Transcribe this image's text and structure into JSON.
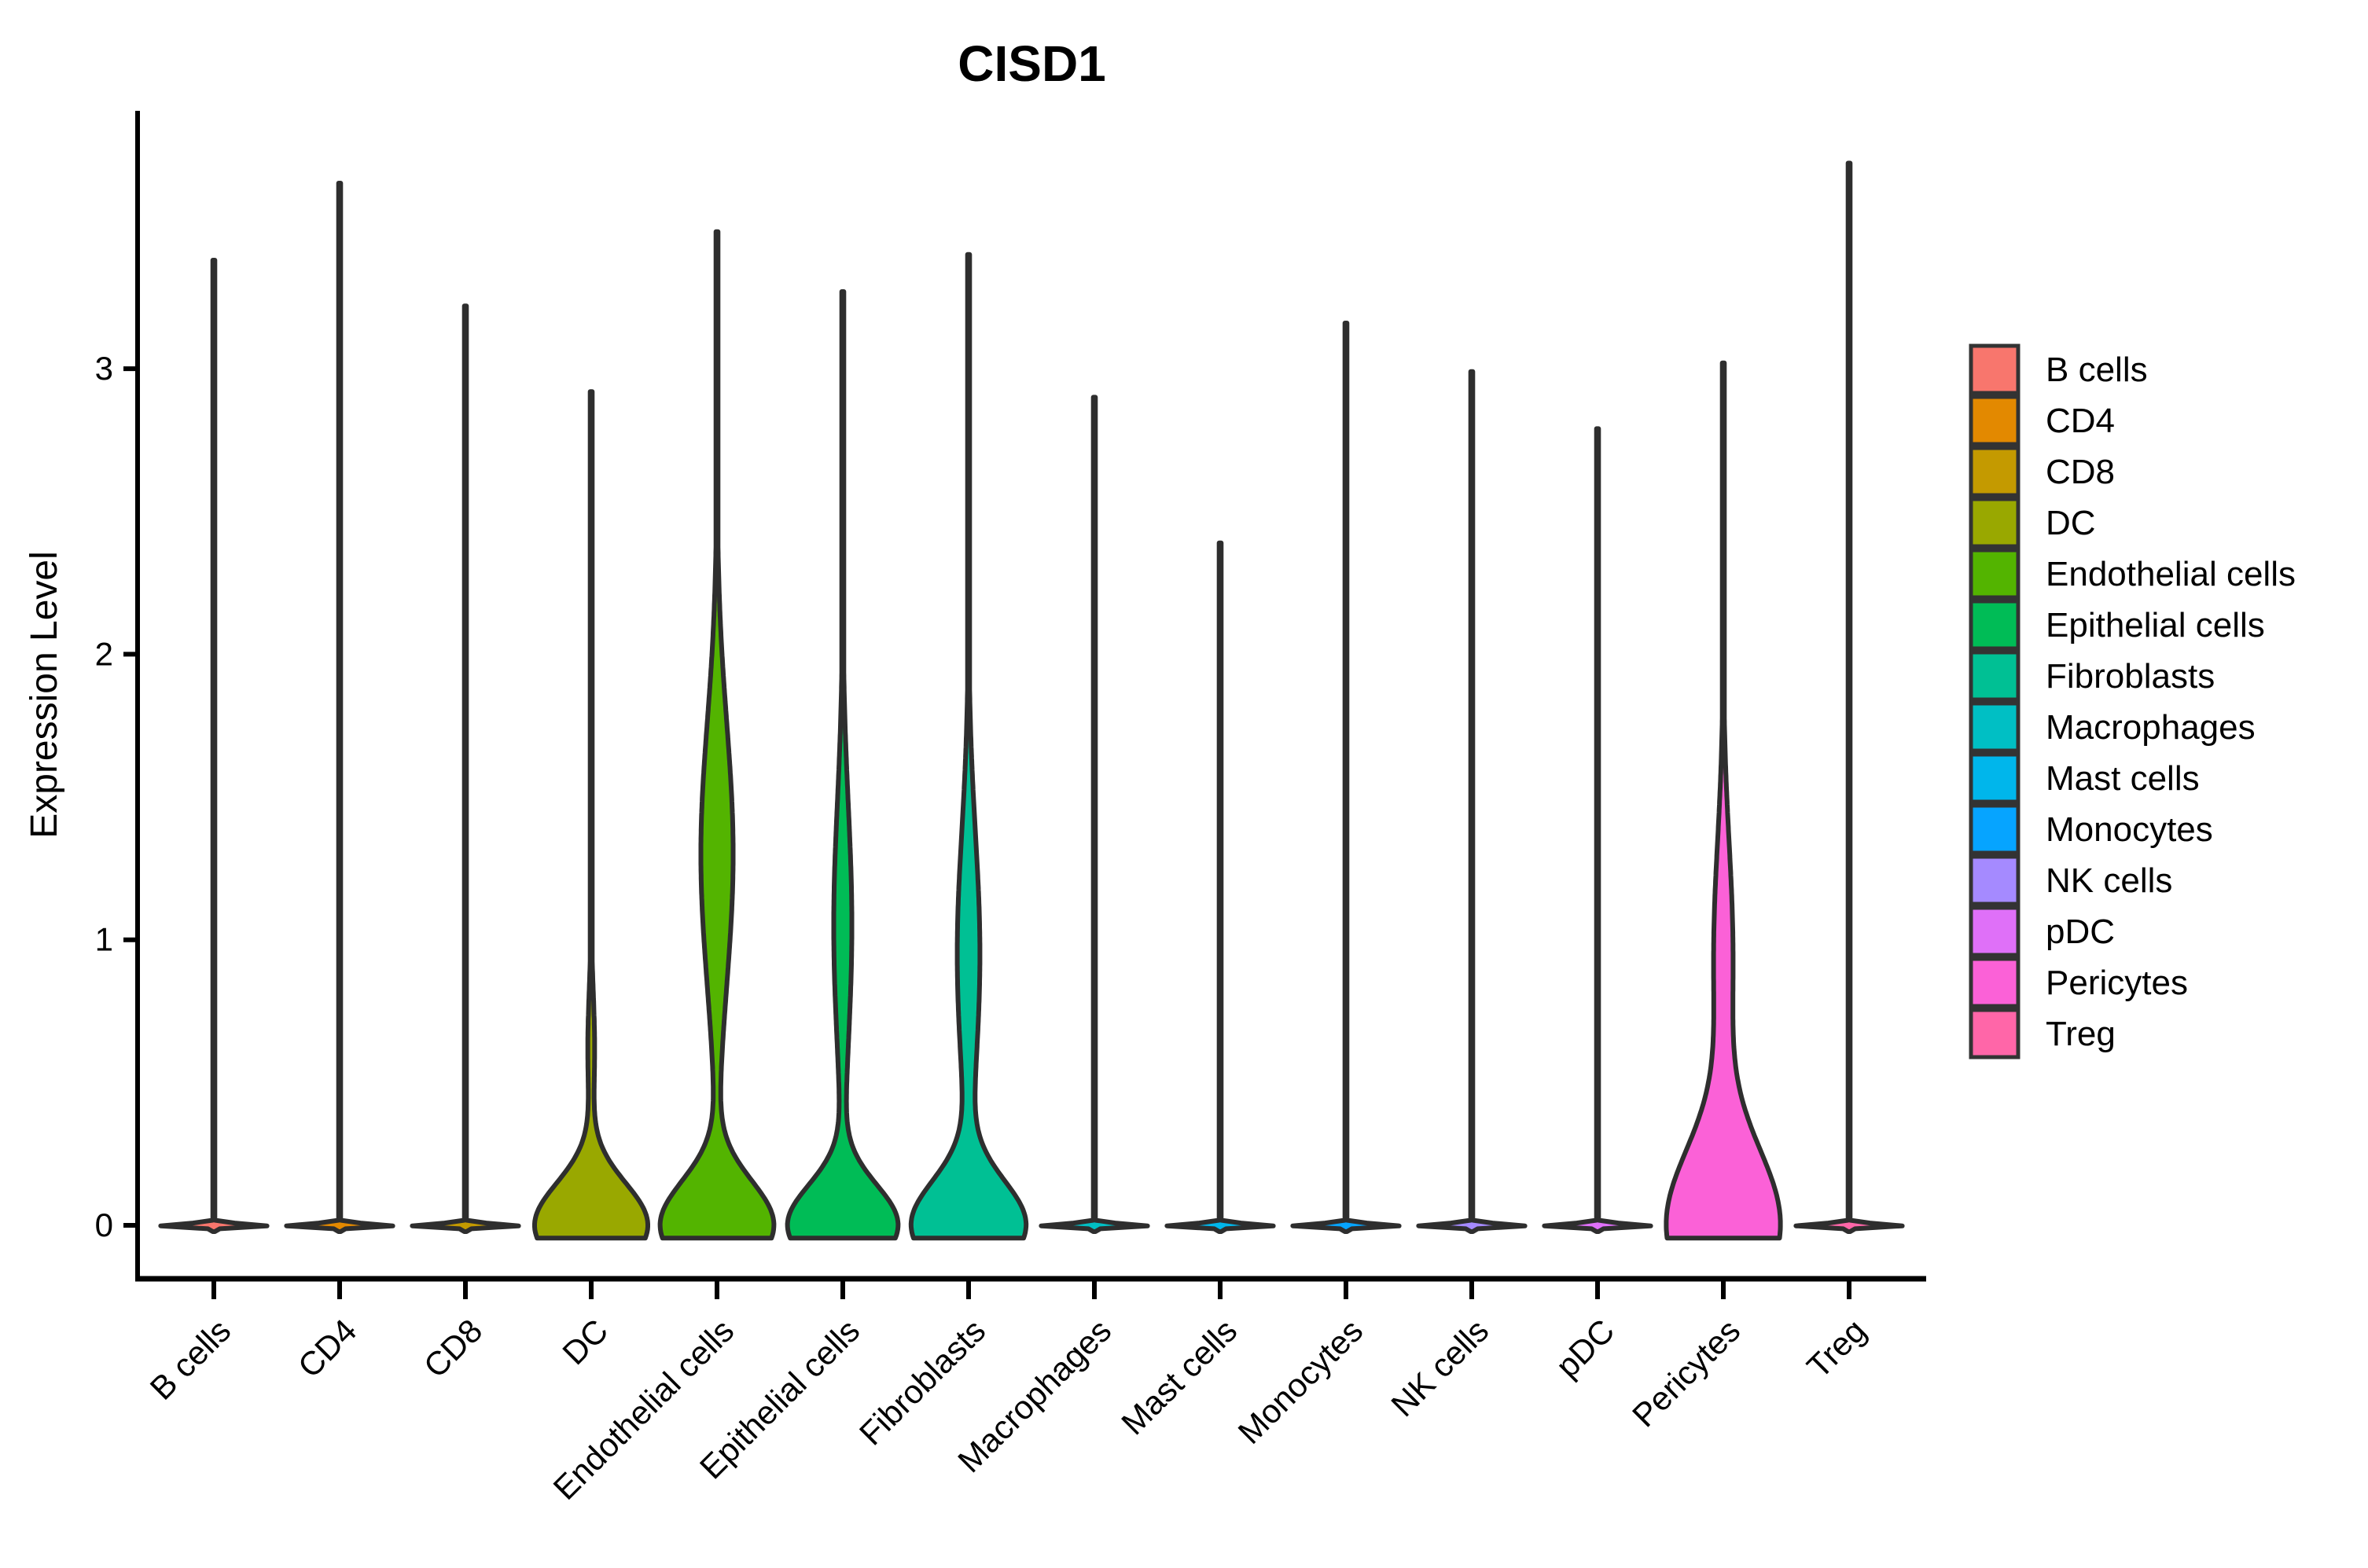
{
  "title": "CISD1",
  "y_axis": {
    "label": "Expression Level",
    "tick_labels": [
      "0",
      "1",
      "2",
      "3"
    ]
  },
  "x_axis": {
    "tick_labels": [
      "B cells",
      "CD4",
      "CD8",
      "DC",
      "Endothelial cells",
      "Epithelial cells",
      "Fibroblasts",
      "Macrophages",
      "Mast cells",
      "Monocytes",
      "NK cells",
      "pDC",
      "Pericytes",
      "Treg"
    ]
  },
  "legend": {
    "position": "right",
    "items": [
      {
        "label": "B cells",
        "color": "#F8766D"
      },
      {
        "label": "CD4",
        "color": "#E38900"
      },
      {
        "label": "CD8",
        "color": "#C49A00"
      },
      {
        "label": "DC",
        "color": "#99A800"
      },
      {
        "label": "Endothelial cells",
        "color": "#53B400"
      },
      {
        "label": "Epithelial cells",
        "color": "#00BC56"
      },
      {
        "label": "Fibroblasts",
        "color": "#00C094"
      },
      {
        "label": "Macrophages",
        "color": "#00BFC4"
      },
      {
        "label": "Mast cells",
        "color": "#00B6EB"
      },
      {
        "label": "Monocytes",
        "color": "#06A4FF"
      },
      {
        "label": "NK cells",
        "color": "#A58AFF"
      },
      {
        "label": "pDC",
        "color": "#DF70F8"
      },
      {
        "label": "Pericytes",
        "color": "#FB61D7"
      },
      {
        "label": "Treg",
        "color": "#FF66A8"
      }
    ]
  },
  "chart_data": {
    "type": "violin",
    "title": "CISD1",
    "xlabel": "",
    "ylabel": "Expression Level",
    "ylim": [
      -0.19,
      3.9
    ],
    "y_ticks": [
      0,
      1,
      2,
      3
    ],
    "grid": false,
    "legend_position": "right",
    "categories": [
      "B cells",
      "CD4",
      "CD8",
      "DC",
      "Endothelial cells",
      "Epithelial cells",
      "Fibroblasts",
      "Macrophages",
      "Mast cells",
      "Monocytes",
      "NK cells",
      "pDC",
      "Pericytes",
      "Treg"
    ],
    "series": [
      {
        "name": "B cells",
        "color": "#F8766D",
        "max_expression": 3.38,
        "zero_inflated": true,
        "v_min": -0.022,
        "density_shape": [
          {
            "c": 0,
            "s": 0.008,
            "a": 1.0
          }
        ]
      },
      {
        "name": "CD4",
        "color": "#E38900",
        "max_expression": 3.65,
        "zero_inflated": true,
        "v_min": -0.022,
        "density_shape": [
          {
            "c": 0,
            "s": 0.008,
            "a": 1.0
          }
        ]
      },
      {
        "name": "CD8",
        "color": "#C49A00",
        "max_expression": 3.22,
        "zero_inflated": true,
        "v_min": -0.022,
        "density_shape": [
          {
            "c": 0,
            "s": 0.008,
            "a": 1.0
          }
        ]
      },
      {
        "name": "DC",
        "color": "#99A800",
        "max_expression": 2.92,
        "zero_inflated": false,
        "v_min": -0.045,
        "density_shape": [
          {
            "c": 0,
            "s": 0.21,
            "a": 1.0
          },
          {
            "c": 0.62,
            "s": 0.28,
            "a": 0.06
          }
        ]
      },
      {
        "name": "Endothelial cells",
        "color": "#53B400",
        "max_expression": 3.48,
        "zero_inflated": false,
        "v_min": -0.045,
        "density_shape": [
          {
            "c": 0,
            "s": 0.22,
            "a": 1.0
          },
          {
            "c": 1.3,
            "s": 0.65,
            "a": 0.285
          }
        ]
      },
      {
        "name": "Epithelial cells",
        "color": "#00BC56",
        "max_expression": 3.27,
        "zero_inflated": false,
        "v_min": -0.045,
        "density_shape": [
          {
            "c": 0,
            "s": 0.2,
            "a": 0.97
          },
          {
            "c": 1.05,
            "s": 0.6,
            "a": 0.16
          }
        ]
      },
      {
        "name": "Fibroblasts",
        "color": "#00C094",
        "max_expression": 3.4,
        "zero_inflated": false,
        "v_min": -0.045,
        "density_shape": [
          {
            "c": 0,
            "s": 0.22,
            "a": 1.0
          },
          {
            "c": 0.95,
            "s": 0.6,
            "a": 0.2
          }
        ]
      },
      {
        "name": "Macrophages",
        "color": "#00BFC4",
        "max_expression": 2.9,
        "zero_inflated": true,
        "v_min": -0.022,
        "density_shape": [
          {
            "c": 0,
            "s": 0.008,
            "a": 1.0
          }
        ]
      },
      {
        "name": "Mast cells",
        "color": "#00B6EB",
        "max_expression": 2.39,
        "zero_inflated": true,
        "v_min": -0.022,
        "density_shape": [
          {
            "c": 0,
            "s": 0.008,
            "a": 1.0
          }
        ]
      },
      {
        "name": "Monocytes",
        "color": "#06A4FF",
        "max_expression": 3.16,
        "zero_inflated": true,
        "v_min": -0.022,
        "density_shape": [
          {
            "c": 0,
            "s": 0.008,
            "a": 1.0
          }
        ]
      },
      {
        "name": "NK cells",
        "color": "#A58AFF",
        "max_expression": 2.99,
        "zero_inflated": true,
        "v_min": -0.022,
        "density_shape": [
          {
            "c": 0,
            "s": 0.008,
            "a": 1.0
          }
        ]
      },
      {
        "name": "pDC",
        "color": "#DF70F8",
        "max_expression": 2.79,
        "zero_inflated": true,
        "v_min": -0.022,
        "density_shape": [
          {
            "c": 0,
            "s": 0.008,
            "a": 1.0
          }
        ]
      },
      {
        "name": "Pericytes",
        "color": "#FB61D7",
        "max_expression": 3.02,
        "zero_inflated": false,
        "v_min": -0.045,
        "density_shape": [
          {
            "c": 0,
            "s": 0.38,
            "a": 1.0
          },
          {
            "c": 0.95,
            "s": 0.55,
            "a": 0.17
          }
        ]
      },
      {
        "name": "Treg",
        "color": "#FF66A8",
        "max_expression": 3.72,
        "zero_inflated": true,
        "v_min": -0.022,
        "density_shape": [
          {
            "c": 0,
            "s": 0.008,
            "a": 1.0
          }
        ]
      }
    ]
  },
  "style": {
    "outline_color": "#2e2e2e",
    "axis_color": "#000000",
    "text_color": "#000000"
  }
}
